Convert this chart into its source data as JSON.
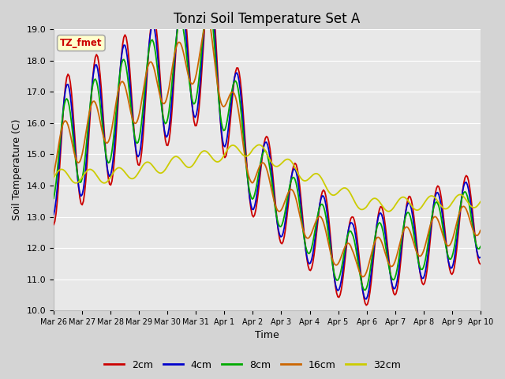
{
  "title": "Tonzi Soil Temperature Set A",
  "xlabel": "Time",
  "ylabel": "Soil Temperature (C)",
  "ylim": [
    10.0,
    19.0
  ],
  "yticks": [
    10.0,
    11.0,
    12.0,
    13.0,
    14.0,
    15.0,
    16.0,
    17.0,
    18.0,
    19.0
  ],
  "xtick_labels": [
    "Mar 26",
    "Mar 27",
    "Mar 28",
    "Mar 29",
    "Mar 30",
    "Mar 31",
    "Apr 1",
    "Apr 2",
    "Apr 3",
    "Apr 4",
    "Apr 5",
    "Apr 6",
    "Apr 7",
    "Apr 8",
    "Apr 9",
    "Apr 10"
  ],
  "annotation": "TZ_fmet",
  "annotation_bg": "#ffffcc",
  "annotation_border": "#aaaaaa",
  "colors": {
    "2cm": "#cc0000",
    "4cm": "#0000cc",
    "8cm": "#00aa00",
    "16cm": "#cc6600",
    "32cm": "#cccc00"
  },
  "fig_bg": "#d4d4d4",
  "plot_bg": "#e8e8e8",
  "grid_color": "#ffffff",
  "title_fontsize": 12
}
